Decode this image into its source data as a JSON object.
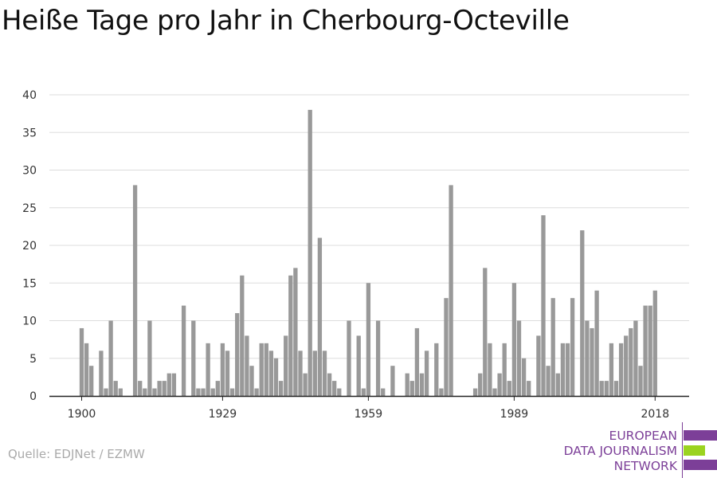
{
  "title": "Heiße Tage pro Jahr in Cherbourg-Octeville",
  "source": "Quelle: EDJNet / EZMW",
  "logo": {
    "lines": [
      "EUROPEAN",
      "DATA JOURNALISM",
      "NETWORK"
    ],
    "colors": {
      "purple": "#7c3f98",
      "green": "#9bd31f"
    }
  },
  "chart_data": {
    "type": "bar",
    "title": "Heiße Tage pro Jahr in Cherbourg-Octeville",
    "xlabel": "",
    "ylabel": "",
    "ylim": [
      0,
      40
    ],
    "y_ticks": [
      0,
      5,
      10,
      15,
      20,
      25,
      30,
      35,
      40
    ],
    "x_tick_labels": [
      "1900",
      "1929",
      "1959",
      "1989",
      "2018"
    ],
    "grid": true,
    "bar_color": "#999999",
    "grid_color": "#dddddd",
    "categories": [
      1900,
      1901,
      1902,
      1903,
      1904,
      1905,
      1906,
      1907,
      1908,
      1909,
      1910,
      1911,
      1912,
      1913,
      1914,
      1915,
      1916,
      1917,
      1918,
      1919,
      1920,
      1921,
      1922,
      1923,
      1924,
      1925,
      1926,
      1927,
      1928,
      1929,
      1930,
      1931,
      1932,
      1933,
      1934,
      1935,
      1936,
      1937,
      1938,
      1939,
      1940,
      1941,
      1942,
      1943,
      1944,
      1945,
      1946,
      1947,
      1948,
      1949,
      1950,
      1951,
      1952,
      1953,
      1954,
      1955,
      1956,
      1957,
      1958,
      1959,
      1960,
      1961,
      1962,
      1963,
      1964,
      1965,
      1966,
      1967,
      1968,
      1969,
      1970,
      1971,
      1972,
      1973,
      1974,
      1975,
      1976,
      1977,
      1978,
      1979,
      1980,
      1981,
      1982,
      1983,
      1984,
      1985,
      1986,
      1987,
      1988,
      1989,
      1990,
      1991,
      1992,
      1993,
      1994,
      1995,
      1996,
      1997,
      1998,
      1999,
      2000,
      2001,
      2002,
      2003,
      2004,
      2005,
      2006,
      2007,
      2008,
      2009,
      2010,
      2011,
      2012,
      2013,
      2014,
      2015,
      2016,
      2017,
      2018
    ],
    "values": [
      9,
      7,
      4,
      0,
      6,
      1,
      10,
      2,
      1,
      0,
      0,
      28,
      2,
      1,
      10,
      1,
      2,
      2,
      3,
      3,
      0,
      12,
      0,
      10,
      1,
      1,
      7,
      1,
      2,
      7,
      6,
      1,
      11,
      16,
      8,
      4,
      1,
      7,
      7,
      6,
      5,
      2,
      8,
      16,
      17,
      6,
      3,
      38,
      6,
      21,
      6,
      3,
      2,
      1,
      0,
      10,
      0,
      8,
      1,
      15,
      0,
      10,
      1,
      0,
      4,
      0,
      0,
      3,
      2,
      9,
      3,
      6,
      0,
      7,
      1,
      13,
      28,
      0,
      0,
      0,
      0,
      1,
      3,
      17,
      7,
      1,
      3,
      7,
      2,
      15,
      10,
      5,
      2,
      0,
      8,
      24,
      4,
      13,
      3,
      7,
      7,
      13,
      0,
      22,
      10,
      9,
      14,
      2,
      2,
      7,
      2,
      7,
      8,
      9,
      10,
      4,
      12,
      12,
      14
    ]
  }
}
